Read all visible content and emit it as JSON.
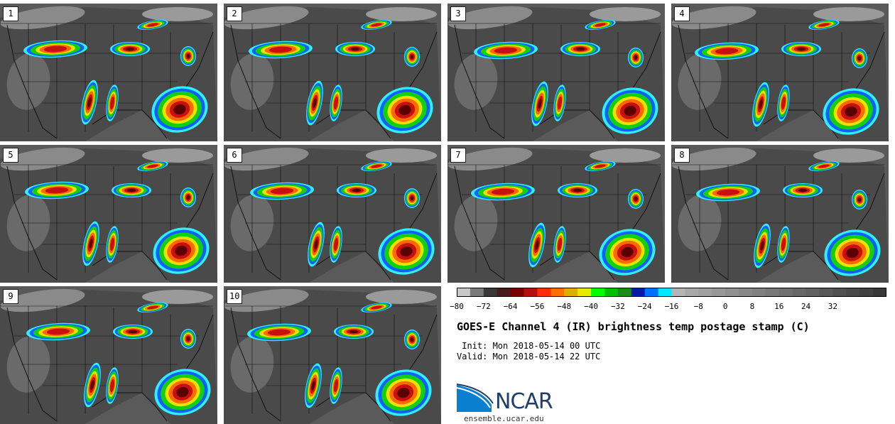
{
  "panels": [
    {
      "label": "1",
      "variant": 0
    },
    {
      "label": "2",
      "variant": 1
    },
    {
      "label": "3",
      "variant": 2
    },
    {
      "label": "4",
      "variant": 3
    },
    {
      "label": "5",
      "variant": 4
    },
    {
      "label": "6",
      "variant": 5
    },
    {
      "label": "7",
      "variant": 6
    },
    {
      "label": "8",
      "variant": 7
    },
    {
      "label": "9",
      "variant": 8
    },
    {
      "label": "10",
      "variant": 9
    }
  ],
  "colorbar": {
    "colors": [
      "#c8c8c8",
      "#7a7a7a",
      "#383838",
      "#4a1a1a",
      "#7a0000",
      "#b01010",
      "#ff2a0a",
      "#ff7000",
      "#dcb000",
      "#e8e800",
      "#00ff00",
      "#00c000",
      "#1a8a1a",
      "#0018a8",
      "#0070ff",
      "#00e8ff",
      "#b4b4b4",
      "#a8a8a8",
      "#a0a0a0",
      "#989898",
      "#909090",
      "#888888",
      "#808080",
      "#787878",
      "#707070",
      "#686868",
      "#606060",
      "#585858",
      "#505050",
      "#484848",
      "#404040",
      "#383838"
    ],
    "ticks": [
      "−80",
      "−72",
      "−64",
      "−56",
      "−48",
      "−40",
      "−32",
      "−24",
      "−16",
      "−8",
      "0",
      "8",
      "16",
      "24",
      "32"
    ]
  },
  "title": "GOES-E Channel 4 (IR) brightness temp postage stamp (C)",
  "init": " Init: Mon 2018-05-14 00 UTC",
  "valid": "Valid: Mon 2018-05-14 22 UTC",
  "logo_text": "NCAR",
  "url": "ensemble.ucar.edu",
  "palette": {
    "cold_core": "#5a0000",
    "red": "#c81010",
    "orange": "#ff6a00",
    "yellow": "#f0e000",
    "green": "#10d010",
    "blue": "#1060ff",
    "cyan": "#30f0ff",
    "logo_blue": "#1d3e6e"
  }
}
